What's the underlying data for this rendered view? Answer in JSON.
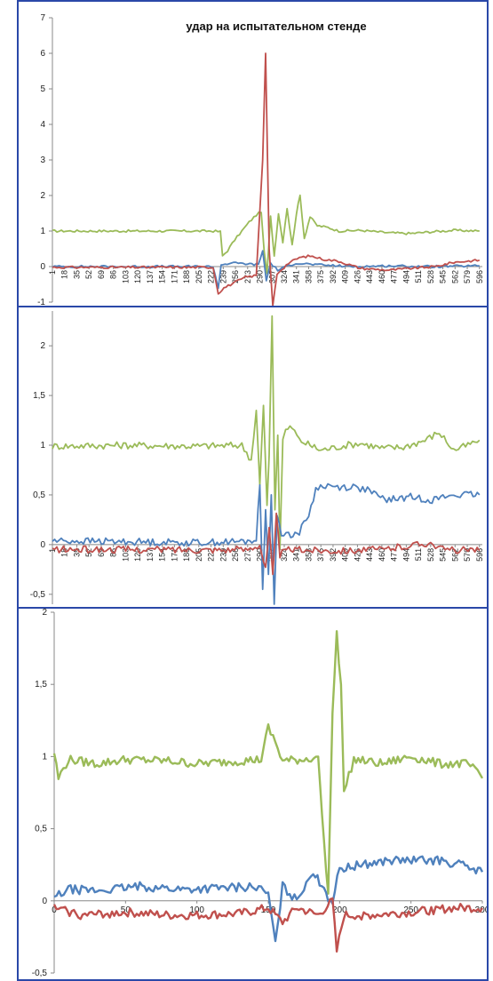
{
  "chart_data": [
    {
      "type": "line",
      "title": "удар на испытательном стенде",
      "ylim": [
        -1,
        7
      ],
      "yticks": [
        "-1",
        "0",
        "1",
        "2",
        "3",
        "4",
        "5",
        "6",
        "7"
      ],
      "xlim": [
        1,
        600
      ],
      "x_tick_labels": [
        "1",
        "18",
        "35",
        "52",
        "69",
        "86",
        "103",
        "120",
        "137",
        "154",
        "171",
        "188",
        "205",
        "222",
        "239",
        "256",
        "273",
        "290",
        "307",
        "324",
        "341",
        "358",
        "375",
        "392",
        "409",
        "426",
        "443",
        "460",
        "477",
        "494",
        "511",
        "528",
        "545",
        "562",
        "579",
        "596"
      ],
      "grid": false,
      "series": [
        {
          "color": "#9bbb59",
          "points": [
            [
              1,
              1
            ],
            [
              225,
              1
            ],
            [
              235,
              0.98
            ],
            [
              238,
              0.3
            ],
            [
              245,
              0.45
            ],
            [
              255,
              0.75
            ],
            [
              265,
              1.0
            ],
            [
              275,
              1.25
            ],
            [
              285,
              1.45
            ],
            [
              292,
              1.55
            ],
            [
              296,
              0.4
            ],
            [
              300,
              -0.2
            ],
            [
              305,
              1.4
            ],
            [
              310,
              0.3
            ],
            [
              316,
              1.5
            ],
            [
              322,
              0.7
            ],
            [
              328,
              1.65
            ],
            [
              335,
              0.6
            ],
            [
              341,
              1.5
            ],
            [
              346,
              2.0
            ],
            [
              352,
              0.8
            ],
            [
              360,
              1.4
            ],
            [
              370,
              1.15
            ],
            [
              385,
              1.1
            ],
            [
              400,
              1.0
            ],
            [
              430,
              1.02
            ],
            [
              470,
              0.95
            ],
            [
              500,
              0.93
            ],
            [
              530,
              0.98
            ],
            [
              560,
              1.02
            ],
            [
              596,
              1.0
            ]
          ]
        },
        {
          "color": "#4f81bd",
          "points": [
            [
              1,
              0
            ],
            [
              225,
              0
            ],
            [
              232,
              -0.6
            ],
            [
              236,
              0.05
            ],
            [
              250,
              0.1
            ],
            [
              270,
              0.08
            ],
            [
              288,
              0.05
            ],
            [
              294,
              0.45
            ],
            [
              299,
              -0.4
            ],
            [
              305,
              0.1
            ],
            [
              315,
              -0.1
            ],
            [
              340,
              0.1
            ],
            [
              370,
              0.05
            ],
            [
              420,
              0.0
            ],
            [
              470,
              0.02
            ],
            [
              530,
              0.0
            ],
            [
              596,
              0.02
            ]
          ]
        },
        {
          "color": "#c0504d",
          "points": [
            [
              1,
              -0.02
            ],
            [
              225,
              -0.02
            ],
            [
              232,
              -0.75
            ],
            [
              240,
              -0.6
            ],
            [
              255,
              -0.45
            ],
            [
              270,
              -0.3
            ],
            [
              285,
              -0.25
            ],
            [
              294,
              3.0
            ],
            [
              298,
              6.0
            ],
            [
              303,
              0.5
            ],
            [
              308,
              -1.1
            ],
            [
              314,
              -0.2
            ],
            [
              330,
              0.1
            ],
            [
              345,
              0.25
            ],
            [
              360,
              0.3
            ],
            [
              380,
              0.2
            ],
            [
              400,
              0.15
            ],
            [
              430,
              -0.05
            ],
            [
              470,
              -0.1
            ],
            [
              500,
              -0.05
            ],
            [
              535,
              0.0
            ],
            [
              545,
              0.05
            ],
            [
              560,
              0.12
            ],
            [
              596,
              0.18
            ]
          ]
        }
      ]
    },
    {
      "type": "line",
      "ylim": [
        -0.6,
        2.35
      ],
      "yticks": [
        "-0,5",
        "0",
        "0,5",
        "1",
        "1,5",
        "2"
      ],
      "xlim": [
        1,
        600
      ],
      "x_tick_labels": [
        "1",
        "18",
        "35",
        "52",
        "69",
        "86",
        "103",
        "120",
        "137",
        "154",
        "171",
        "188",
        "205",
        "222",
        "239",
        "256",
        "273",
        "290",
        "307",
        "324",
        "341",
        "358",
        "375",
        "392",
        "409",
        "426",
        "443",
        "460",
        "477",
        "494",
        "511",
        "528",
        "545",
        "562",
        "579",
        "596"
      ],
      "grid": false,
      "series": [
        {
          "color": "#9bbb59",
          "points": [
            [
              1,
              0.99
            ],
            [
              100,
              1.0
            ],
            [
              200,
              0.99
            ],
            [
              265,
              1.0
            ],
            [
              278,
              0.85
            ],
            [
              285,
              1.35
            ],
            [
              290,
              0.6
            ],
            [
              295,
              1.4
            ],
            [
              300,
              0.4
            ],
            [
              303,
              0.9
            ],
            [
              307,
              2.3
            ],
            [
              311,
              0.35
            ],
            [
              315,
              1.1
            ],
            [
              318,
              -0.05
            ],
            [
              322,
              1.05
            ],
            [
              326,
              1.15
            ],
            [
              335,
              1.18
            ],
            [
              345,
              1.05
            ],
            [
              360,
              1.0
            ],
            [
              375,
              0.95
            ],
            [
              390,
              0.97
            ],
            [
              410,
              1.0
            ],
            [
              430,
              1.02
            ],
            [
              460,
              0.97
            ],
            [
              490,
              0.98
            ],
            [
              520,
              1.05
            ],
            [
              540,
              1.13
            ],
            [
              560,
              0.95
            ],
            [
              580,
              1.0
            ],
            [
              596,
              1.05
            ]
          ]
        },
        {
          "color": "#4f81bd",
          "points": [
            [
              1,
              0.04
            ],
            [
              100,
              0.03
            ],
            [
              200,
              0.02
            ],
            [
              270,
              0.03
            ],
            [
              285,
              0.05
            ],
            [
              290,
              0.6
            ],
            [
              294,
              -0.45
            ],
            [
              298,
              0.35
            ],
            [
              302,
              -0.3
            ],
            [
              306,
              0.5
            ],
            [
              310,
              -0.6
            ],
            [
              314,
              0.3
            ],
            [
              320,
              0.12
            ],
            [
              330,
              0.1
            ],
            [
              345,
              0.12
            ],
            [
              358,
              0.3
            ],
            [
              368,
              0.55
            ],
            [
              378,
              0.6
            ],
            [
              395,
              0.58
            ],
            [
              420,
              0.58
            ],
            [
              440,
              0.55
            ],
            [
              455,
              0.48
            ],
            [
              470,
              0.45
            ],
            [
              500,
              0.48
            ],
            [
              530,
              0.45
            ],
            [
              560,
              0.5
            ],
            [
              596,
              0.5
            ]
          ]
        },
        {
          "color": "#c0504d",
          "points": [
            [
              1,
              -0.05
            ],
            [
              100,
              -0.05
            ],
            [
              200,
              -0.05
            ],
            [
              270,
              -0.05
            ],
            [
              290,
              0.0
            ],
            [
              298,
              -0.25
            ],
            [
              303,
              0.15
            ],
            [
              308,
              -0.3
            ],
            [
              313,
              0.3
            ],
            [
              318,
              -0.1
            ],
            [
              330,
              -0.05
            ],
            [
              400,
              -0.06
            ],
            [
              460,
              -0.05
            ],
            [
              528,
              0.02
            ],
            [
              545,
              -0.05
            ],
            [
              596,
              -0.06
            ]
          ]
        }
      ]
    },
    {
      "type": "line",
      "ylim": [
        -0.5,
        2
      ],
      "yticks": [
        "-0,5",
        "0",
        "0,5",
        "1",
        "1,5",
        "2"
      ],
      "xlim": [
        0,
        300
      ],
      "x_tick_labels": [
        "0",
        "50",
        "100",
        "150",
        "200",
        "250",
        "300"
      ],
      "x_tick_values": [
        0,
        50,
        100,
        150,
        200,
        250,
        300
      ],
      "grid": false,
      "series": [
        {
          "color": "#9bbb59",
          "points": [
            [
              0,
              1.03
            ],
            [
              3,
              0.85
            ],
            [
              10,
              0.98
            ],
            [
              30,
              0.95
            ],
            [
              50,
              0.98
            ],
            [
              80,
              0.97
            ],
            [
              100,
              0.95
            ],
            [
              130,
              0.97
            ],
            [
              145,
              0.98
            ],
            [
              150,
              1.2
            ],
            [
              155,
              1.1
            ],
            [
              160,
              0.97
            ],
            [
              175,
              0.98
            ],
            [
              185,
              1.0
            ],
            [
              189,
              0.4
            ],
            [
              192,
              0.05
            ],
            [
              195,
              1.3
            ],
            [
              198,
              1.85
            ],
            [
              201,
              1.5
            ],
            [
              203,
              0.75
            ],
            [
              210,
              0.98
            ],
            [
              230,
              0.95
            ],
            [
              250,
              1.0
            ],
            [
              270,
              0.95
            ],
            [
              290,
              0.95
            ],
            [
              300,
              0.85
            ]
          ]
        },
        {
          "color": "#4f81bd",
          "points": [
            [
              0,
              0.02
            ],
            [
              10,
              0.08
            ],
            [
              30,
              0.07
            ],
            [
              60,
              0.1
            ],
            [
              90,
              0.08
            ],
            [
              120,
              0.09
            ],
            [
              140,
              0.1
            ],
            [
              150,
              0.05
            ],
            [
              155,
              -0.3
            ],
            [
              160,
              0.1
            ],
            [
              170,
              0.0
            ],
            [
              180,
              0.2
            ],
            [
              189,
              0.1
            ],
            [
              192,
              0.02
            ],
            [
              195,
              0.0
            ],
            [
              200,
              0.22
            ],
            [
              215,
              0.25
            ],
            [
              235,
              0.28
            ],
            [
              255,
              0.28
            ],
            [
              270,
              0.28
            ],
            [
              285,
              0.25
            ],
            [
              300,
              0.2
            ]
          ]
        },
        {
          "color": "#c0504d",
          "points": [
            [
              0,
              -0.05
            ],
            [
              20,
              -0.1
            ],
            [
              50,
              -0.08
            ],
            [
              80,
              -0.1
            ],
            [
              100,
              -0.1
            ],
            [
              130,
              -0.09
            ],
            [
              150,
              -0.05
            ],
            [
              160,
              -0.15
            ],
            [
              170,
              -0.05
            ],
            [
              185,
              -0.1
            ],
            [
              195,
              0.0
            ],
            [
              198,
              -0.35
            ],
            [
              203,
              -0.1
            ],
            [
              220,
              -0.1
            ],
            [
              250,
              -0.08
            ],
            [
              280,
              -0.05
            ],
            [
              300,
              -0.05
            ]
          ]
        }
      ]
    }
  ]
}
